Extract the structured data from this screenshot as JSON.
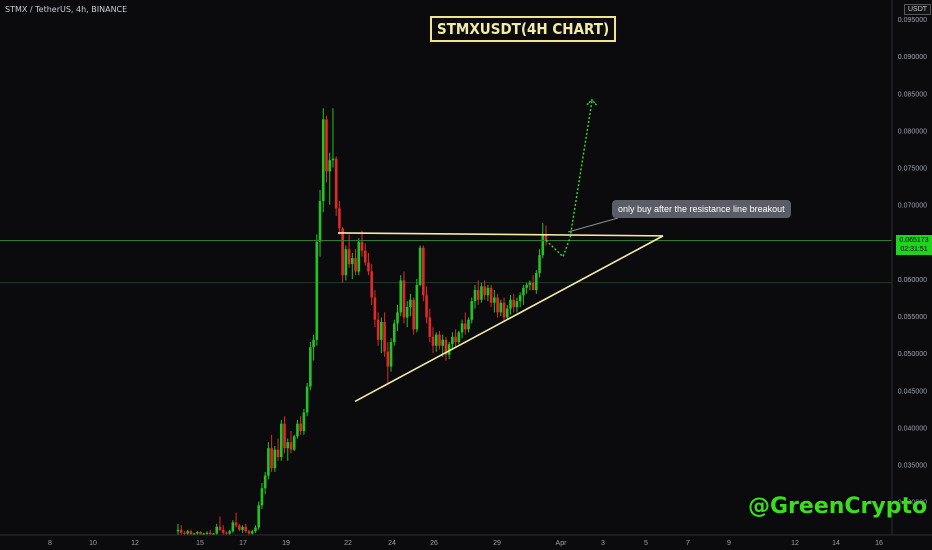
{
  "header": {
    "symbol": "STMX / TetherUS, 4h, BINANCE",
    "title": "STMXUSDT(4H CHART)",
    "unit": "USDT"
  },
  "annotation": {
    "text": "only buy after the resistance line breakout"
  },
  "watermark": "@GreenCrypto",
  "current_price": {
    "price": "0.065173",
    "countdown": "02:31:51"
  },
  "colors": {
    "up": "#26a69a",
    "up_bright": "#1ed41e",
    "down": "#e53935",
    "trendline": "#f3eba6",
    "projection": "#2ee02e",
    "price_line": "#2e7d32",
    "axis_text": "#9aa0ab"
  },
  "chart_data": {
    "type": "candlestick",
    "title": "STMXUSDT(4H CHART)",
    "y_axis": {
      "ticks": [
        "0.030000",
        "0.035000",
        "0.040000",
        "0.045000",
        "0.050000",
        "0.055000",
        "0.060000",
        "0.065000",
        "0.070000",
        "0.075000",
        "0.080000",
        "0.085000",
        "0.090000",
        "0.095000"
      ],
      "range": [
        0.0255,
        0.0965
      ]
    },
    "x_axis": {
      "ticks": [
        "8",
        "10",
        "12",
        "15",
        "17",
        "19",
        "22",
        "24",
        "26",
        "29",
        "Apr",
        "3",
        "5",
        "7",
        "9",
        "12",
        "14",
        "16"
      ]
    },
    "candles": [
      [
        0.026,
        0.027,
        0.0255,
        0.0262
      ],
      [
        0.0262,
        0.0268,
        0.0255,
        0.0258
      ],
      [
        0.0258,
        0.026,
        0.0255,
        0.0257
      ],
      [
        0.0257,
        0.0262,
        0.0255,
        0.026
      ],
      [
        0.026,
        0.0262,
        0.0255,
        0.0256
      ],
      [
        0.0256,
        0.0258,
        0.0255,
        0.0257
      ],
      [
        0.0257,
        0.026,
        0.0255,
        0.0259
      ],
      [
        0.0259,
        0.026,
        0.0255,
        0.0256
      ],
      [
        0.0256,
        0.0258,
        0.0255,
        0.0257
      ],
      [
        0.0257,
        0.026,
        0.0255,
        0.0258
      ],
      [
        0.0258,
        0.0262,
        0.0255,
        0.0256
      ],
      [
        0.0256,
        0.0258,
        0.0255,
        0.0257
      ],
      [
        0.0257,
        0.027,
        0.0255,
        0.0266
      ],
      [
        0.0266,
        0.028,
        0.026,
        0.0262
      ],
      [
        0.0262,
        0.0268,
        0.0255,
        0.0258
      ],
      [
        0.0258,
        0.026,
        0.0255,
        0.0257
      ],
      [
        0.0257,
        0.0262,
        0.0255,
        0.026
      ],
      [
        0.026,
        0.0275,
        0.0258,
        0.0272
      ],
      [
        0.0272,
        0.0285,
        0.0265,
        0.0268
      ],
      [
        0.0268,
        0.027,
        0.026,
        0.0262
      ],
      [
        0.0262,
        0.0268,
        0.0258,
        0.0266
      ],
      [
        0.0266,
        0.027,
        0.0258,
        0.026
      ],
      [
        0.026,
        0.0262,
        0.0255,
        0.0257
      ],
      [
        0.0257,
        0.0262,
        0.0255,
        0.026
      ],
      [
        0.026,
        0.0268,
        0.0258,
        0.0265
      ],
      [
        0.0265,
        0.03,
        0.0262,
        0.0295
      ],
      [
        0.0295,
        0.0325,
        0.029,
        0.0318
      ],
      [
        0.0318,
        0.034,
        0.031,
        0.0335
      ],
      [
        0.0335,
        0.038,
        0.033,
        0.0372
      ],
      [
        0.0372,
        0.039,
        0.034,
        0.0345
      ],
      [
        0.0345,
        0.0375,
        0.034,
        0.037
      ],
      [
        0.037,
        0.0385,
        0.0355,
        0.036
      ],
      [
        0.036,
        0.041,
        0.0355,
        0.0405
      ],
      [
        0.0405,
        0.0415,
        0.0365,
        0.0372
      ],
      [
        0.0372,
        0.0385,
        0.0355,
        0.038
      ],
      [
        0.038,
        0.0395,
        0.0365,
        0.037
      ],
      [
        0.037,
        0.039,
        0.0368,
        0.0388
      ],
      [
        0.0388,
        0.041,
        0.0385,
        0.0405
      ],
      [
        0.0405,
        0.0415,
        0.039,
        0.0395
      ],
      [
        0.0395,
        0.0425,
        0.039,
        0.042
      ],
      [
        0.042,
        0.046,
        0.0415,
        0.0455
      ],
      [
        0.0455,
        0.0515,
        0.045,
        0.0508
      ],
      [
        0.0508,
        0.0525,
        0.049,
        0.0518
      ],
      [
        0.0518,
        0.066,
        0.051,
        0.065
      ],
      [
        0.065,
        0.072,
        0.063,
        0.0705
      ],
      [
        0.0705,
        0.083,
        0.069,
        0.0815
      ],
      [
        0.0815,
        0.082,
        0.073,
        0.0745
      ],
      [
        0.0745,
        0.077,
        0.07,
        0.076
      ],
      [
        0.076,
        0.083,
        0.075,
        0.0762
      ],
      [
        0.0762,
        0.0765,
        0.0685,
        0.0695
      ],
      [
        0.0695,
        0.0705,
        0.066,
        0.0668
      ],
      [
        0.0668,
        0.067,
        0.0595,
        0.0605
      ],
      [
        0.0605,
        0.0645,
        0.0598,
        0.064
      ],
      [
        0.064,
        0.066,
        0.0615,
        0.062
      ],
      [
        0.062,
        0.0635,
        0.06,
        0.0628
      ],
      [
        0.0628,
        0.064,
        0.0605,
        0.061
      ],
      [
        0.061,
        0.0655,
        0.0605,
        0.065
      ],
      [
        0.065,
        0.0665,
        0.063,
        0.0638
      ],
      [
        0.0638,
        0.0648,
        0.0618,
        0.0622
      ],
      [
        0.0622,
        0.0635,
        0.0605,
        0.061
      ],
      [
        0.061,
        0.062,
        0.0565,
        0.0575
      ],
      [
        0.0575,
        0.0585,
        0.0535,
        0.0545
      ],
      [
        0.0545,
        0.0555,
        0.051,
        0.0518
      ],
      [
        0.0518,
        0.0548,
        0.05,
        0.0542
      ],
      [
        0.0542,
        0.0555,
        0.0495,
        0.0502
      ],
      [
        0.0502,
        0.0515,
        0.046,
        0.0482
      ],
      [
        0.0482,
        0.052,
        0.0475,
        0.0515
      ],
      [
        0.0515,
        0.0545,
        0.051,
        0.054
      ],
      [
        0.054,
        0.0565,
        0.053,
        0.0555
      ],
      [
        0.0555,
        0.0605,
        0.055,
        0.0598
      ],
      [
        0.0598,
        0.061,
        0.054,
        0.0548
      ],
      [
        0.0548,
        0.057,
        0.0535,
        0.0562
      ],
      [
        0.0562,
        0.058,
        0.055,
        0.0572
      ],
      [
        0.0572,
        0.0575,
        0.0525,
        0.0532
      ],
      [
        0.0532,
        0.06,
        0.0528,
        0.0592
      ],
      [
        0.0592,
        0.0645,
        0.059,
        0.0642
      ],
      [
        0.0642,
        0.0645,
        0.057,
        0.0578
      ],
      [
        0.0578,
        0.059,
        0.054,
        0.0548
      ],
      [
        0.0548,
        0.056,
        0.0515,
        0.0522
      ],
      [
        0.0522,
        0.0535,
        0.05,
        0.051
      ],
      [
        0.051,
        0.0528,
        0.0502,
        0.0525
      ],
      [
        0.0525,
        0.053,
        0.0505,
        0.051
      ],
      [
        0.051,
        0.0525,
        0.0495,
        0.0518
      ],
      [
        0.0518,
        0.0522,
        0.049,
        0.0498
      ],
      [
        0.0498,
        0.0515,
        0.0492,
        0.0512
      ],
      [
        0.0512,
        0.0528,
        0.0505,
        0.0522
      ],
      [
        0.0522,
        0.0532,
        0.0508,
        0.0515
      ],
      [
        0.0515,
        0.053,
        0.0512,
        0.0528
      ],
      [
        0.0528,
        0.0545,
        0.052,
        0.054
      ],
      [
        0.054,
        0.0555,
        0.0525,
        0.0532
      ],
      [
        0.0532,
        0.0548,
        0.0528,
        0.0545
      ],
      [
        0.0545,
        0.0575,
        0.054,
        0.057
      ],
      [
        0.057,
        0.0592,
        0.056,
        0.0585
      ],
      [
        0.0585,
        0.0598,
        0.0565,
        0.0572
      ],
      [
        0.0572,
        0.0595,
        0.0568,
        0.059
      ],
      [
        0.059,
        0.0598,
        0.0572,
        0.0578
      ],
      [
        0.0578,
        0.0592,
        0.057,
        0.0588
      ],
      [
        0.0588,
        0.0592,
        0.0562,
        0.0568
      ],
      [
        0.0568,
        0.0585,
        0.0555,
        0.0575
      ],
      [
        0.0575,
        0.058,
        0.0548,
        0.0555
      ],
      [
        0.0555,
        0.0572,
        0.055,
        0.0568
      ],
      [
        0.0568,
        0.0575,
        0.0542,
        0.0548
      ],
      [
        0.0548,
        0.0565,
        0.0545,
        0.056
      ],
      [
        0.056,
        0.0578,
        0.0552,
        0.0572
      ],
      [
        0.0572,
        0.058,
        0.0555,
        0.0562
      ],
      [
        0.0562,
        0.0575,
        0.0555,
        0.057
      ],
      [
        0.057,
        0.0582,
        0.0562,
        0.0578
      ],
      [
        0.0578,
        0.0592,
        0.0565,
        0.0588
      ],
      [
        0.0588,
        0.0595,
        0.058,
        0.0592
      ],
      [
        0.0592,
        0.0598,
        0.0585,
        0.0595
      ],
      [
        0.0595,
        0.0605,
        0.059,
        0.0585
      ],
      [
        0.0585,
        0.0612,
        0.058,
        0.0608
      ],
      [
        0.0608,
        0.064,
        0.0602,
        0.0632
      ],
      [
        0.0632,
        0.0675,
        0.0628,
        0.066
      ],
      [
        0.066,
        0.0672,
        0.0645,
        0.0652
      ]
    ],
    "resistance_line": {
      "from": [
        0.0662,
        0.0662
      ],
      "to": [
        0.0658,
        0.0658
      ]
    },
    "support_line": {
      "low": 0.0435,
      "high": 0.0658
    },
    "projection": [
      0.0652,
      0.063,
      0.0655,
      0.084
    ],
    "current_price": 0.065173
  }
}
